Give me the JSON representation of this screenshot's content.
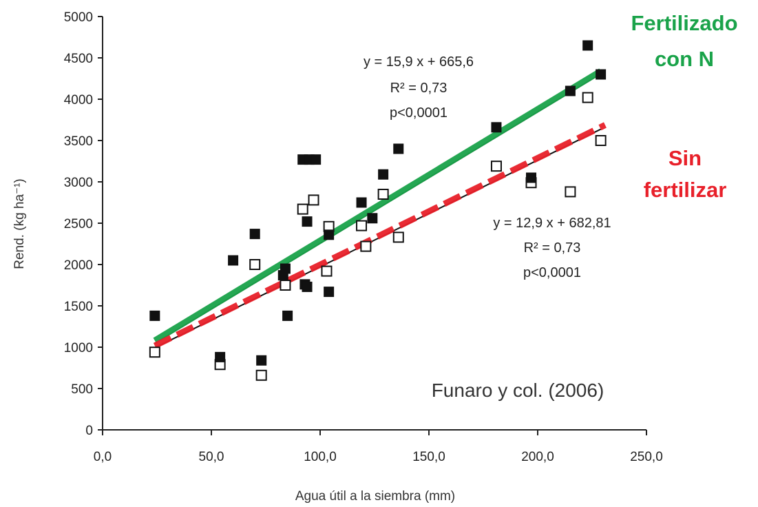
{
  "chart_data": {
    "type": "scatter",
    "xlabel": "Agua útil a la siembra (mm)",
    "ylabel": "Rend. (kg ha⁻¹)",
    "xlim": [
      0,
      250
    ],
    "ylim": [
      0,
      5000
    ],
    "x_ticks": [
      "0,0",
      "50,0",
      "100,0",
      "150,0",
      "200,0",
      "250,0"
    ],
    "y_ticks": [
      "0",
      "500",
      "1000",
      "1500",
      "2000",
      "2500",
      "3000",
      "3500",
      "4000",
      "4500",
      "5000"
    ],
    "grid": false,
    "series": [
      {
        "name": "Fertilizado con N",
        "label_lines": [
          "Fertilizado",
          "con N"
        ],
        "marker": "filled-square",
        "line_color": "#1aa34a",
        "points": [
          [
            24,
            1380
          ],
          [
            54,
            880
          ],
          [
            60,
            2050
          ],
          [
            70,
            2370
          ],
          [
            73,
            840
          ],
          [
            83,
            1870
          ],
          [
            84,
            1950
          ],
          [
            85,
            1380
          ],
          [
            92,
            3270
          ],
          [
            93,
            1760
          ],
          [
            94,
            1730
          ],
          [
            94,
            2520
          ],
          [
            95,
            3270
          ],
          [
            98,
            3270
          ],
          [
            104,
            1670
          ],
          [
            104,
            2360
          ],
          [
            119,
            2750
          ],
          [
            124,
            2560
          ],
          [
            129,
            3090
          ],
          [
            136,
            3400
          ],
          [
            181,
            3660
          ],
          [
            197,
            3050
          ],
          [
            215,
            4100
          ],
          [
            223,
            4650
          ],
          [
            229,
            4300
          ]
        ],
        "fit": {
          "slope": 15.9,
          "intercept": 665.6
        },
        "equation_lines": [
          "y = 15,9 x + 665,6",
          "R² = 0,73",
          "p<0,0001"
        ]
      },
      {
        "name": "Sin fertilizar",
        "label_lines": [
          "Sin",
          "fertilizar"
        ],
        "marker": "open-square",
        "line_color": "#e8202a",
        "line_style": "dashed",
        "points": [
          [
            24,
            940
          ],
          [
            54,
            790
          ],
          [
            70,
            2000
          ],
          [
            73,
            660
          ],
          [
            84,
            1750
          ],
          [
            92,
            2670
          ],
          [
            97,
            2780
          ],
          [
            103,
            1920
          ],
          [
            104,
            2460
          ],
          [
            119,
            2470
          ],
          [
            121,
            2220
          ],
          [
            129,
            2850
          ],
          [
            136,
            2330
          ],
          [
            181,
            3190
          ],
          [
            197,
            2990
          ],
          [
            215,
            2880
          ],
          [
            223,
            4020
          ],
          [
            229,
            3500
          ]
        ],
        "fit": {
          "slope": 12.9,
          "intercept": 682.81
        },
        "equation_lines": [
          "y = 12,9 x + 682,81",
          "R² = 0,73",
          "p<0,0001"
        ]
      }
    ],
    "annotations": [
      "Funaro y col. (2006)"
    ]
  }
}
